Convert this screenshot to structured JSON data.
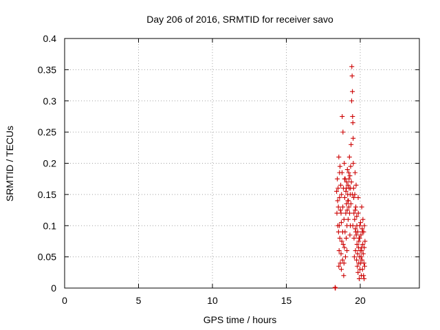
{
  "chart_data": {
    "type": "scatter",
    "title": "Day 206 of 2016, SRMTID for receiver savo",
    "xlabel": "GPS time / hours",
    "ylabel": "SRMTID / TECUs",
    "xlim": [
      0,
      24
    ],
    "ylim": [
      0,
      0.4
    ],
    "xticks": [
      0,
      5,
      10,
      15,
      20
    ],
    "xtick_labels": [
      "0",
      "5",
      "10",
      "15",
      "20"
    ],
    "yticks": [
      0,
      0.05,
      0.1,
      0.15,
      0.2,
      0.25,
      0.3,
      0.35,
      0.4
    ],
    "ytick_labels": [
      "0",
      "0.05",
      "0.1",
      "0.15",
      "0.2",
      "0.25",
      "0.3",
      "0.35",
      "0.4"
    ],
    "grid": true,
    "marker": "plus",
    "marker_color": "#cc0000",
    "series": [
      {
        "name": "savo",
        "points": [
          [
            18.3,
            0.0
          ],
          [
            18.3,
            0.001
          ],
          [
            18.32,
            0.0
          ],
          [
            18.4,
            0.155
          ],
          [
            18.42,
            0.12
          ],
          [
            18.45,
            0.175
          ],
          [
            18.47,
            0.14
          ],
          [
            18.5,
            0.16
          ],
          [
            18.52,
            0.13
          ],
          [
            18.53,
            0.09
          ],
          [
            18.55,
            0.21
          ],
          [
            18.57,
            0.06
          ],
          [
            18.58,
            0.1
          ],
          [
            18.6,
            0.145
          ],
          [
            18.62,
            0.08
          ],
          [
            18.63,
            0.195
          ],
          [
            18.65,
            0.04
          ],
          [
            18.66,
            0.125
          ],
          [
            18.68,
            0.165
          ],
          [
            18.7,
            0.055
          ],
          [
            18.72,
            0.105
          ],
          [
            18.73,
            0.15
          ],
          [
            18.75,
            0.075
          ],
          [
            18.77,
            0.185
          ],
          [
            18.78,
            0.275
          ],
          [
            18.8,
            0.045
          ],
          [
            18.82,
            0.13
          ],
          [
            18.83,
            0.25
          ],
          [
            18.85,
            0.07
          ],
          [
            18.86,
            0.16
          ],
          [
            18.88,
            0.02
          ],
          [
            18.9,
            0.11
          ],
          [
            18.92,
            0.2
          ],
          [
            18.93,
            0.065
          ],
          [
            18.95,
            0.145
          ],
          [
            18.97,
            0.09
          ],
          [
            18.98,
            0.175
          ],
          [
            19.0,
            0.05
          ],
          [
            19.02,
            0.12
          ],
          [
            19.03,
            0.155
          ],
          [
            19.05,
            0.08
          ],
          [
            19.07,
            0.135
          ],
          [
            19.08,
            0.17
          ],
          [
            19.1,
            0.1
          ],
          [
            19.12,
            0.125
          ],
          [
            19.13,
            0.19
          ],
          [
            19.15,
            0.15
          ],
          [
            19.17,
            0.165
          ],
          [
            19.18,
            0.11
          ],
          [
            19.2,
            0.14
          ],
          [
            19.22,
            0.185
          ],
          [
            19.23,
            0.13
          ],
          [
            19.25,
            0.16
          ],
          [
            19.27,
            0.21
          ],
          [
            19.28,
            0.12
          ],
          [
            19.3,
            0.18
          ],
          [
            19.32,
            0.15
          ],
          [
            19.33,
            0.1
          ],
          [
            19.35,
            0.195
          ],
          [
            19.37,
            0.135
          ],
          [
            19.38,
            0.23
          ],
          [
            19.4,
            0.17
          ],
          [
            19.42,
            0.3
          ],
          [
            19.43,
            0.355
          ],
          [
            19.45,
            0.34
          ],
          [
            19.47,
            0.315
          ],
          [
            19.48,
            0.275
          ],
          [
            19.5,
            0.265
          ],
          [
            19.52,
            0.24
          ],
          [
            19.53,
            0.2
          ],
          [
            19.55,
            0.16
          ],
          [
            19.57,
            0.12
          ],
          [
            19.58,
            0.08
          ],
          [
            19.6,
            0.05
          ],
          [
            19.62,
            0.11
          ],
          [
            19.63,
            0.15
          ],
          [
            19.65,
            0.185
          ],
          [
            19.67,
            0.095
          ],
          [
            19.68,
            0.06
          ],
          [
            19.7,
            0.13
          ],
          [
            19.72,
            0.165
          ],
          [
            19.73,
            0.085
          ],
          [
            19.75,
            0.045
          ],
          [
            19.77,
            0.1
          ],
          [
            19.78,
            0.07
          ],
          [
            19.8,
            0.035
          ],
          [
            19.82,
            0.055
          ],
          [
            19.83,
            0.09
          ],
          [
            19.85,
            0.025
          ],
          [
            19.87,
            0.12
          ],
          [
            19.88,
            0.065
          ],
          [
            19.9,
            0.04
          ],
          [
            19.92,
            0.08
          ],
          [
            19.93,
            0.015
          ],
          [
            19.95,
            0.05
          ],
          [
            19.97,
            0.1
          ],
          [
            19.98,
            0.03
          ],
          [
            20.0,
            0.06
          ],
          [
            20.02,
            0.105
          ],
          [
            20.03,
            0.04
          ],
          [
            20.05,
            0.085
          ],
          [
            20.07,
            0.02
          ],
          [
            20.08,
            0.065
          ],
          [
            20.1,
            0.13
          ],
          [
            20.12,
            0.045
          ],
          [
            20.13,
            0.095
          ],
          [
            20.15,
            0.03
          ],
          [
            20.17,
            0.07
          ],
          [
            20.18,
            0.11
          ],
          [
            20.2,
            0.055
          ],
          [
            20.22,
            0.02
          ],
          [
            20.23,
            0.09
          ],
          [
            20.25,
            0.04
          ],
          [
            20.27,
            0.065
          ],
          [
            20.28,
            0.1
          ],
          [
            20.3,
            0.035
          ],
          [
            20.32,
            0.075
          ],
          [
            18.48,
            0.1
          ],
          [
            18.6,
            0.185
          ],
          [
            18.7,
            0.12
          ],
          [
            18.81,
            0.09
          ],
          [
            18.94,
            0.175
          ],
          [
            19.06,
            0.16
          ],
          [
            19.16,
            0.14
          ],
          [
            19.24,
            0.175
          ],
          [
            19.34,
            0.16
          ],
          [
            19.46,
            0.15
          ],
          [
            19.56,
            0.145
          ],
          [
            19.66,
            0.125
          ],
          [
            19.76,
            0.115
          ],
          [
            19.86,
            0.145
          ],
          [
            19.96,
            0.08
          ],
          [
            20.06,
            0.05
          ],
          [
            20.16,
            0.09
          ],
          [
            20.26,
            0.015
          ],
          [
            18.55,
            0.035
          ],
          [
            18.72,
            0.03
          ],
          [
            18.9,
            0.04
          ],
          [
            19.1,
            0.06
          ],
          [
            19.3,
            0.085
          ],
          [
            19.5,
            0.1
          ],
          [
            19.7,
            0.09
          ],
          [
            19.9,
            0.075
          ],
          [
            20.1,
            0.06
          ]
        ]
      }
    ]
  }
}
